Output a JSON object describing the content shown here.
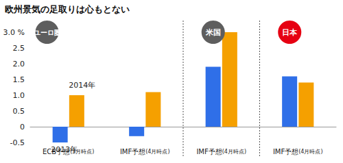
{
  "chart_data": {
    "type": "bar",
    "title": "欧州景気の足取りは心もとない",
    "categories": [
      "ECB予想(3月時点)",
      "IMF予想(4月時点)",
      "IMF予想(4月時点)",
      "IMF予想(4月時点)"
    ],
    "series": [
      {
        "name": "2013年",
        "color": "#2f6fe8",
        "values": [
          -0.5,
          -0.3,
          1.9,
          1.6
        ]
      },
      {
        "name": "2014年",
        "color": "#f5a000",
        "values": [
          1.0,
          1.1,
          3.0,
          1.4
        ]
      }
    ],
    "groups": [
      {
        "label": "ユーロ圏",
        "color": "#5e5e5e",
        "categories": [
          0,
          1
        ]
      },
      {
        "label": "米国",
        "color": "#5e5e5e",
        "categories": [
          2
        ]
      },
      {
        "label": "日本",
        "color": "#e60012",
        "categories": [
          3
        ]
      }
    ],
    "ylim": [
      -0.5,
      3.0
    ],
    "yticks": [
      -0.5,
      0,
      0.5,
      {
        "value": 1.0,
        "label": "1.0"
      },
      1.5,
      {
        "value": 2.0,
        "label": "2.0"
      },
      2.5,
      {
        "value": 3.0,
        "label": "3.0 %"
      }
    ],
    "grid": false
  }
}
